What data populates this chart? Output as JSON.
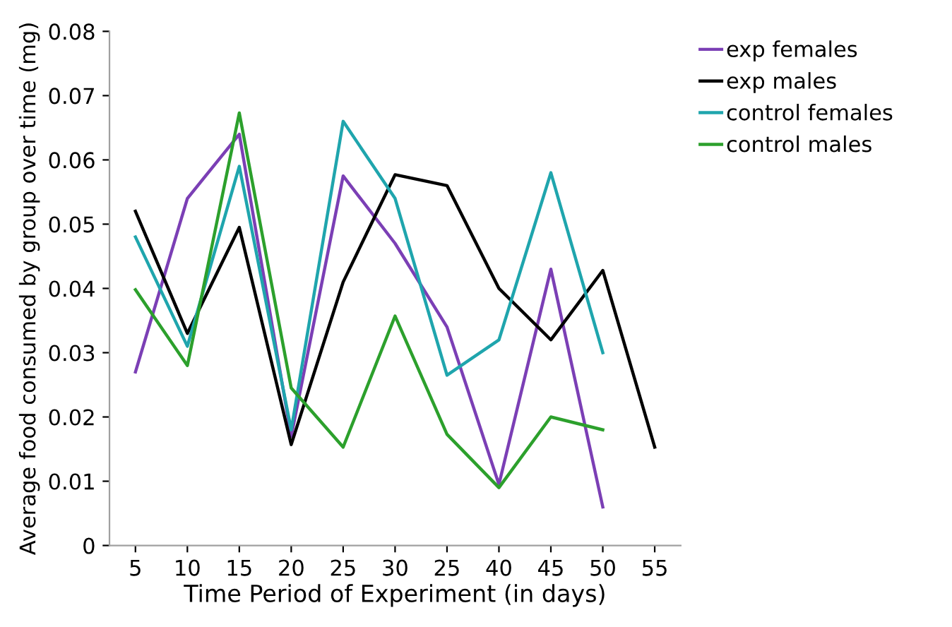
{
  "chart_data": {
    "type": "line",
    "xlabel": "Time Period of Experiment (in days)",
    "ylabel": "Average food consumed by group over time (mg)",
    "categories": [
      "5",
      "10",
      "15",
      "20",
      "25",
      "30",
      "25",
      "40",
      "45",
      "50",
      "55"
    ],
    "series": [
      {
        "name": "exp females",
        "color": "#7b3fb5",
        "values": [
          0.027,
          0.054,
          0.064,
          0.017,
          0.0575,
          0.047,
          0.034,
          0.0095,
          0.043,
          0.006,
          null
        ]
      },
      {
        "name": "exp males",
        "color": "#000000",
        "values": [
          0.052,
          0.033,
          0.0495,
          0.0157,
          0.041,
          0.0577,
          0.056,
          0.04,
          0.032,
          0.0428,
          0.0153
        ]
      },
      {
        "name": "control females",
        "color": "#1fa5ad",
        "values": [
          0.048,
          0.031,
          0.059,
          0.018,
          0.066,
          0.054,
          0.0265,
          0.032,
          0.058,
          0.03,
          null
        ]
      },
      {
        "name": "control males",
        "color": "#2ca02c",
        "values": [
          0.0398,
          0.028,
          0.0673,
          0.0245,
          0.0153,
          0.0357,
          0.0173,
          0.009,
          0.02,
          0.018,
          null
        ]
      }
    ],
    "ylim": [
      0,
      0.08
    ],
    "yticks": [
      0,
      0.01,
      0.02,
      0.03,
      0.04,
      0.05,
      0.06,
      0.07,
      0.08
    ],
    "grid": false,
    "legend": "top right",
    "marker": "none",
    "line_style": "solid"
  }
}
